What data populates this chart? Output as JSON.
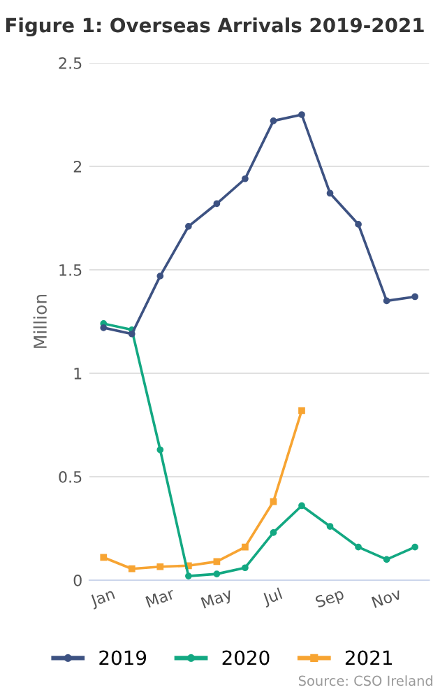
{
  "chart_data": {
    "type": "line",
    "title": "Figure 1: Overseas Arrivals 2019-2021",
    "ylabel": "Million",
    "categories": [
      "Jan",
      null,
      "Mar",
      null,
      "May",
      null,
      "Jul",
      null,
      "Sep",
      null,
      "Nov",
      null
    ],
    "series": [
      {
        "name": "2019",
        "color": "#3d5282",
        "marker": "circle",
        "values": [
          1.22,
          1.19,
          1.47,
          1.71,
          1.82,
          1.94,
          2.22,
          2.25,
          1.87,
          1.72,
          1.35,
          1.37
        ]
      },
      {
        "name": "2020",
        "color": "#13a882",
        "marker": "circle",
        "values": [
          1.24,
          1.21,
          0.63,
          0.02,
          0.03,
          0.06,
          0.23,
          0.36,
          0.26,
          0.16,
          0.1,
          0.16
        ]
      },
      {
        "name": "2021",
        "color": "#f7a432",
        "marker": "square",
        "values": [
          0.11,
          0.055,
          0.065,
          0.07,
          0.09,
          0.16,
          0.38,
          0.82,
          null,
          null,
          null,
          null
        ]
      }
    ],
    "ylim": [
      0,
      2.5
    ],
    "yticks": [
      0,
      0.5,
      1,
      1.5,
      2,
      2.5
    ],
    "grid": "y",
    "legend": "bottom",
    "line_style": "solid",
    "annotations": [
      "Source: CSO Ireland"
    ]
  }
}
